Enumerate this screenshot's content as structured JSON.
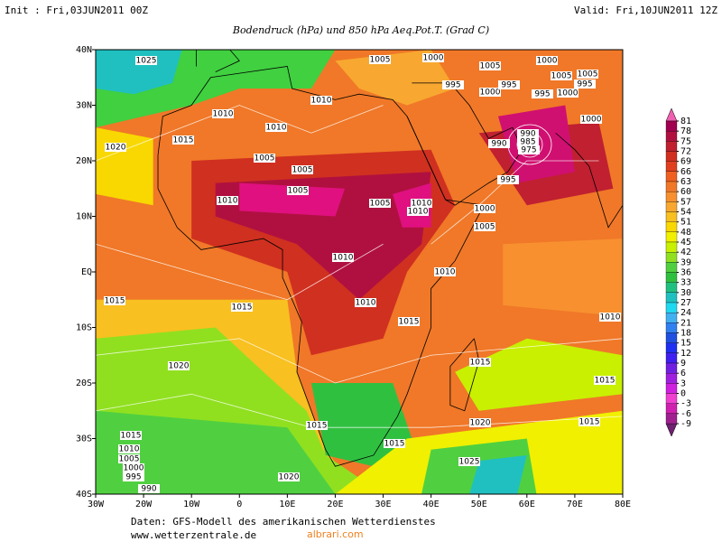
{
  "header": {
    "init": "Init : Fri,03JUN2011 00Z",
    "valid": "Valid: Fri,10JUN2011 12Z",
    "title": "Bodendruck (hPa) und 850 hPa Aeq.Pot.T. (Grad C)"
  },
  "map": {
    "lon_range": [
      -30,
      80
    ],
    "lat_range": [
      -40,
      40
    ],
    "lon_ticks": [
      {
        "value": -30,
        "label": "30W"
      },
      {
        "value": -20,
        "label": "20W"
      },
      {
        "value": -10,
        "label": "10W"
      },
      0,
      {
        "value": 10,
        "label": "10E"
      },
      {
        "value": 20,
        "label": "20E"
      },
      {
        "value": 30,
        "label": "30E"
      },
      {
        "value": 40,
        "label": "40E"
      },
      {
        "value": 50,
        "label": "50E"
      },
      {
        "value": 60,
        "label": "60E"
      },
      {
        "value": 70,
        "label": "70E"
      },
      {
        "value": 80,
        "label": "80E"
      }
    ],
    "lat_ticks": [
      {
        "value": 40,
        "label": "40N"
      },
      {
        "value": 30,
        "label": "30N"
      },
      {
        "value": 20,
        "label": "20N"
      },
      {
        "value": 10,
        "label": "10N"
      },
      {
        "value": 0,
        "label": "EQ"
      },
      {
        "value": -10,
        "label": "10S"
      },
      {
        "value": -20,
        "label": "20S"
      },
      {
        "value": -30,
        "label": "30S"
      },
      {
        "value": -40,
        "label": "40S"
      }
    ],
    "isobar_labels": [
      "1025",
      "1005",
      "1000",
      "1005",
      "1000",
      "1005",
      "1005",
      "995",
      "1000",
      "995",
      "995",
      "1000",
      "995",
      "1010",
      "1010",
      "1010",
      "1000",
      "1020",
      "1015",
      "990",
      "985",
      "975",
      "990",
      "1005",
      "1005",
      "995",
      "1005",
      "1010",
      "1005",
      "1010",
      "1010",
      "1000",
      "1005",
      "1010",
      "1010",
      "1015",
      "1015",
      "1010",
      "1015",
      "1010",
      "1020",
      "1015",
      "1015",
      "1015",
      "1020",
      "1015",
      "1015",
      "1015",
      "1010",
      "1005",
      "1000",
      "995",
      "990",
      "1025",
      "1020"
    ]
  },
  "colorbar": {
    "levels": [
      81,
      78,
      75,
      72,
      69,
      66,
      63,
      60,
      57,
      54,
      51,
      48,
      45,
      42,
      39,
      36,
      33,
      30,
      27,
      24,
      21,
      18,
      15,
      12,
      9,
      6,
      3,
      0,
      -3,
      -6,
      -9
    ],
    "colors": [
      "#f060b0",
      "#a00050",
      "#b01040",
      "#c02030",
      "#d03020",
      "#e04020",
      "#f06020",
      "#f07828",
      "#f89030",
      "#f8a830",
      "#f8c020",
      "#f8d800",
      "#f0f000",
      "#c8f000",
      "#90e020",
      "#50d040",
      "#30c040",
      "#20c080",
      "#20c0c0",
      "#20d8f0",
      "#40b0f0",
      "#3080f0",
      "#2050e0",
      "#2030f0",
      "#4020f0",
      "#7020e0",
      "#a020e0",
      "#d020e0",
      "#f040d0",
      "#d020b0",
      "#a02090",
      "#702070"
    ]
  },
  "footer": {
    "source": "Daten: GFS-Modell des amerikanischen Wetterdienstes",
    "url": "www.wetterzentrale.de",
    "watermark": "albrari.com"
  }
}
